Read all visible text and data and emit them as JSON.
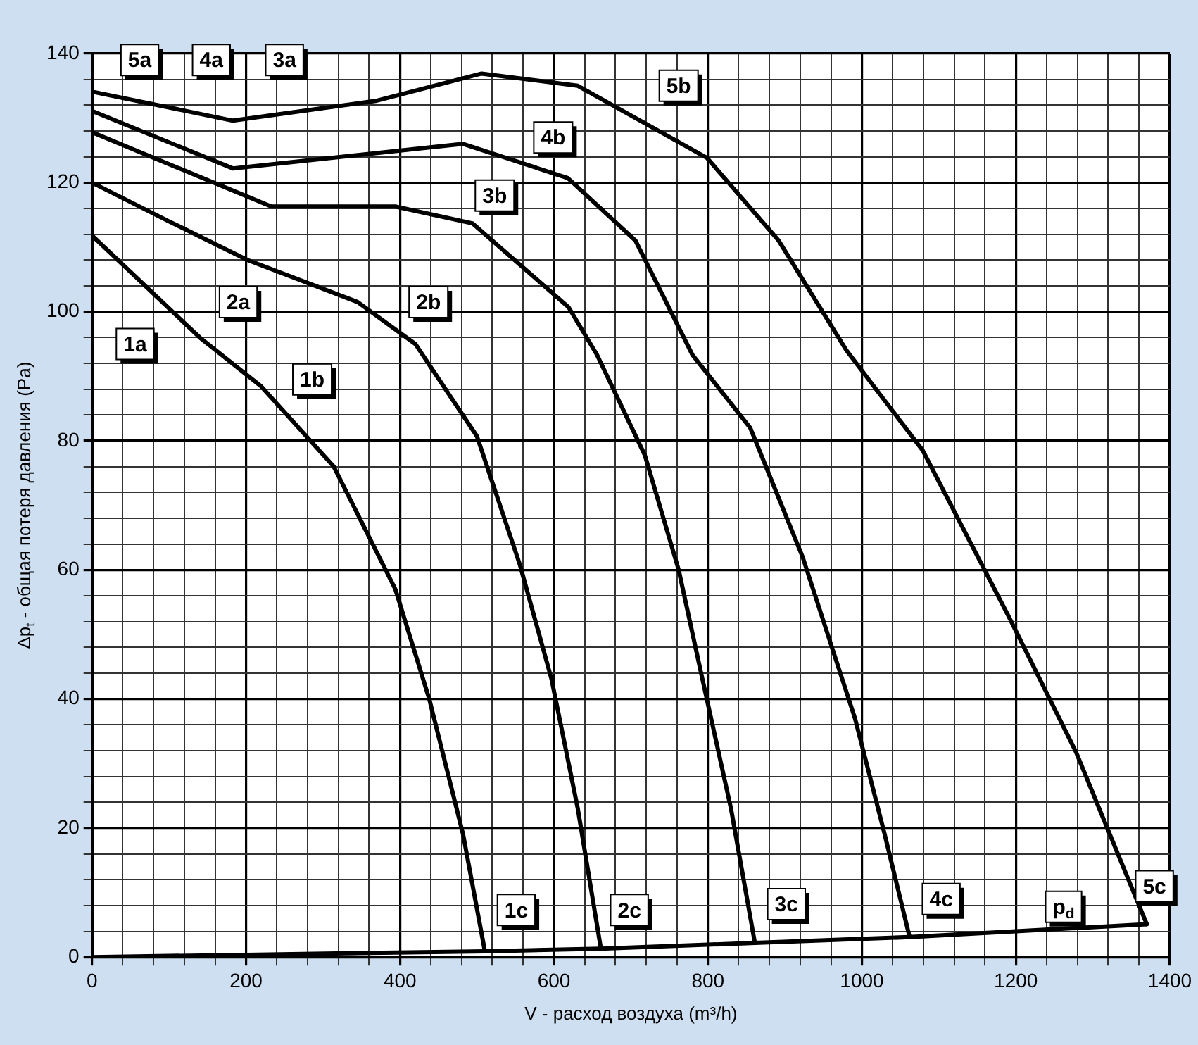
{
  "chart_data": {
    "type": "line",
    "xlabel": "V - расход воздуха (m³/h)",
    "ylabel": "Δp$_{t}$ - общая потеря давления (Pa)",
    "xlim": [
      0,
      1400
    ],
    "xticks": [
      0,
      {
        "value": 40,
        "label": null
      },
      {
        "value": 80,
        "label": null
      },
      {
        "value": 120,
        "label": null
      },
      {
        "value": 160,
        "label": null
      },
      200,
      {
        "value": 240,
        "label": null
      },
      {
        "value": 280,
        "label": null
      },
      {
        "value": 320,
        "label": null
      },
      {
        "value": 360,
        "label": null
      },
      400,
      {
        "value": 440,
        "label": null
      },
      {
        "value": 480,
        "label": null
      },
      {
        "value": 520,
        "label": null
      },
      {
        "value": 560,
        "label": null
      },
      600,
      {
        "value": 640,
        "label": null
      },
      {
        "value": 680,
        "label": null
      },
      {
        "value": 720,
        "label": null
      },
      {
        "value": 760,
        "label": null
      },
      800,
      {
        "value": 840,
        "label": null
      },
      {
        "value": 880,
        "label": null
      },
      {
        "value": 920,
        "label": null
      },
      {
        "value": 960,
        "label": null
      },
      1000,
      {
        "value": 1040,
        "label": null
      },
      {
        "value": 1080,
        "label": null
      },
      {
        "value": 1120,
        "label": null
      },
      {
        "value": 1160,
        "label": null
      },
      1200,
      {
        "value": 1240,
        "label": null
      },
      {
        "value": 1280,
        "label": null
      },
      {
        "value": 1320,
        "label": null
      },
      {
        "value": 1360,
        "label": null
      },
      1400
    ],
    "ylim": [
      0,
      140
    ],
    "yticks": [
      0,
      {
        "value": 4,
        "label": null
      },
      {
        "value": 8,
        "label": null
      },
      {
        "value": 12,
        "label": null
      },
      {
        "value": 16,
        "label": null
      },
      20,
      {
        "value": 24,
        "label": null
      },
      {
        "value": 28,
        "label": null
      },
      {
        "value": 32,
        "label": null
      },
      {
        "value": 36,
        "label": null
      },
      40,
      {
        "value": 44,
        "label": null
      },
      {
        "value": 48,
        "label": null
      },
      {
        "value": 52,
        "label": null
      },
      {
        "value": 56,
        "label": null
      },
      60,
      {
        "value": 64,
        "label": null
      },
      {
        "value": 68,
        "label": null
      },
      {
        "value": 72,
        "label": null
      },
      {
        "value": 76,
        "label": null
      },
      80,
      {
        "value": 84,
        "label": null
      },
      {
        "value": 88,
        "label": null
      },
      {
        "value": 92,
        "label": null
      },
      {
        "value": 96,
        "label": null
      },
      100,
      {
        "value": 104,
        "label": null
      },
      {
        "value": 108,
        "label": null
      },
      {
        "value": 112,
        "label": null
      },
      {
        "value": 116,
        "label": null
      },
      120,
      {
        "value": 124,
        "label": null
      },
      {
        "value": 128,
        "label": null
      },
      {
        "value": 132,
        "label": null
      },
      {
        "value": 136,
        "label": null
      },
      140
    ],
    "grid": true,
    "legend": false,
    "marker": "none",
    "line_style": "solid",
    "series": [
      {
        "color": "#000000",
        "x": [
          0,
          140,
          220,
          314,
          394,
          438,
          482,
          510
        ],
        "values": [
          111.8,
          96,
          88.4,
          76,
          57,
          40,
          19,
          1.1
        ]
      },
      {
        "color": "#000000",
        "x": [
          0,
          100,
          202,
          345,
          420,
          500,
          556,
          597,
          631,
          661
        ],
        "values": [
          120,
          114,
          108,
          101.5,
          95,
          80.7,
          60.7,
          43,
          23,
          1.3
        ]
      },
      {
        "color": "#000000",
        "x": [
          0,
          233,
          394,
          494,
          619,
          656,
          718,
          762,
          793,
          830,
          861
        ],
        "values": [
          127.8,
          116.3,
          116.3,
          113.7,
          100.7,
          93.3,
          77.8,
          60,
          43,
          23,
          2.2
        ]
      },
      {
        "color": "#000000",
        "x": [
          0,
          183,
          482,
          618,
          706,
          780,
          855,
          923,
          991,
          1029,
          1062
        ],
        "values": [
          131.1,
          122.2,
          126,
          120.7,
          111,
          93.3,
          82,
          62,
          37,
          19.3,
          3.1
        ]
      },
      {
        "color": "#000000",
        "x": [
          0,
          183,
          370,
          506,
          631,
          799,
          892,
          980,
          1079,
          1191,
          1278,
          1370
        ],
        "values": [
          134.1,
          129.6,
          132.7,
          136.9,
          135,
          123.8,
          111,
          94,
          78.5,
          52.7,
          31.8,
          5.1
        ]
      },
      {
        "color": "#000000",
        "x": [
          0,
          510,
          661,
          861,
          1062,
          1370
        ],
        "values": [
          0,
          0.9,
          1.3,
          2.2,
          3.1,
          5.1
        ]
      }
    ],
    "annotations": [
      {
        "text": "5a",
        "x": 62,
        "y": 139
      },
      {
        "text": "4a",
        "x": 155,
        "y": 139
      },
      {
        "text": "3a",
        "x": 250,
        "y": 139
      },
      {
        "text": "5b",
        "x": 762,
        "y": 135
      },
      {
        "text": "4b",
        "x": 599,
        "y": 127
      },
      {
        "text": "3b",
        "x": 523,
        "y": 118
      },
      {
        "text": "2a",
        "x": 190,
        "y": 101.5
      },
      {
        "text": "2b",
        "x": 437,
        "y": 101.5
      },
      {
        "text": "1a",
        "x": 56,
        "y": 95
      },
      {
        "text": "1b",
        "x": 286,
        "y": 89.5
      },
      {
        "text": "1c",
        "x": 551,
        "y": 7.3
      },
      {
        "text": "2c",
        "x": 698,
        "y": 7.3
      },
      {
        "text": "3c",
        "x": 902,
        "y": 8.2
      },
      {
        "text": "4c",
        "x": 1103,
        "y": 9
      },
      {
        "text": "p$_{d}$",
        "x": 1262,
        "y": 7.8
      },
      {
        "text": "5c",
        "x": 1380,
        "y": 11
      }
    ]
  }
}
